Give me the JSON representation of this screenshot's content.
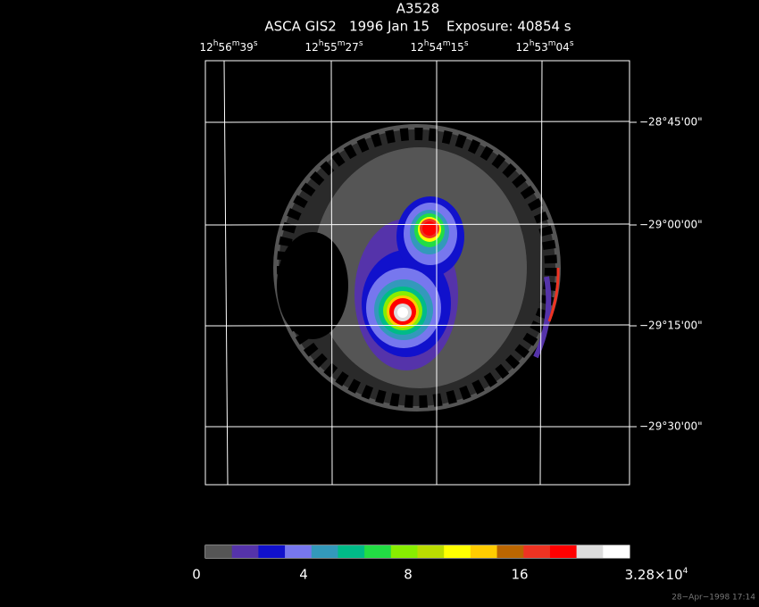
{
  "title": "A3528",
  "subtitle": "ASCA GIS2   1996 Jan 15    Exposure: 40854 s",
  "ra_labels": [
    [
      "12",
      "h",
      "56",
      "m",
      "39",
      "s"
    ],
    [
      "12",
      "h",
      "55",
      "m",
      "27",
      "s"
    ],
    [
      "12",
      "h",
      "54",
      "m",
      "15",
      "s"
    ],
    [
      "12",
      "h",
      "53",
      "m",
      "04",
      "s"
    ]
  ],
  "dec_labels": [
    "−28°45'00\"",
    "−29°00'00\"",
    "−29°15'00\"",
    "−29°30'00\""
  ],
  "colorbar": {
    "colors": [
      "#555555",
      "#5533aa",
      "#1111cc",
      "#7777ee",
      "#3399bb",
      "#00bb88",
      "#22dd44",
      "#88ee00",
      "#bbdd00",
      "#ffff00",
      "#ffcc00",
      "#bb6600",
      "#ee3322",
      "#ff0000",
      "#dddddd",
      "#ffffff"
    ],
    "labels": [
      "0",
      "4",
      "8",
      "16"
    ],
    "max_label": [
      "3.28×10",
      "4"
    ]
  },
  "timestamp": "28−Apr−1998 17:14"
}
